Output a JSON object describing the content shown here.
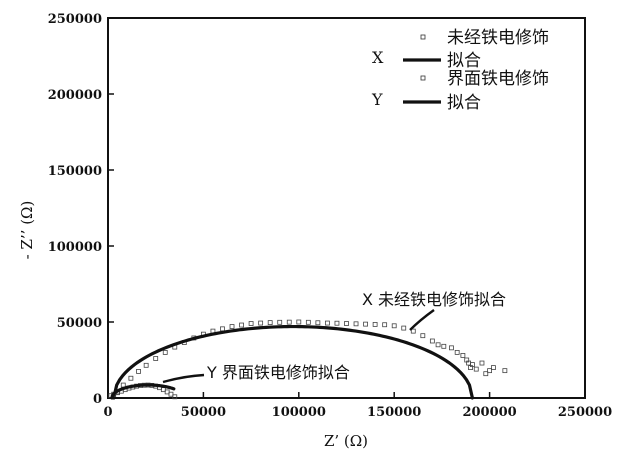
{
  "chart_data": {
    "type": "scatter",
    "xlabel": "Z’ (Ω)",
    "ylabel": "- Z’’ (Ω)",
    "xlim": [
      0,
      250000
    ],
    "ylim": [
      0,
      250000
    ],
    "x_ticks": [
      "0",
      "50000",
      "100000",
      "150000",
      "200000",
      "250000"
    ],
    "x_tick_values": [
      0,
      50000,
      100000,
      150000,
      200000,
      250000
    ],
    "y_ticks": [
      "0",
      "50000",
      "100000",
      "150000",
      "200000",
      "250000"
    ],
    "y_tick_values": [
      0,
      50000,
      100000,
      150000,
      200000,
      250000
    ],
    "grid": false,
    "legend_position": "top-right",
    "legend": {
      "group_x_label": "X",
      "group_y_label": "Y",
      "x_data": "未经铁电修饰",
      "x_fit": "拟合",
      "y_data": "界面铁电修饰",
      "y_fit": "拟合"
    },
    "annotations": [
      {
        "text": "X 未经铁电修饰拟合",
        "x": 125000,
        "y": 62000
      },
      {
        "text": "Y 界面铁电修饰拟合",
        "x": 60000,
        "y": 14500
      }
    ],
    "series": [
      {
        "name": "未经铁电修饰",
        "kind": "data",
        "x": [
          5000,
          8000,
          12000,
          16000,
          20000,
          25000,
          30000,
          35000,
          40000,
          45000,
          50000,
          55000,
          60000,
          65000,
          70000,
          75000,
          80000,
          85000,
          90000,
          95000,
          100000,
          105000,
          110000,
          115000,
          120000,
          125000,
          130000,
          135000,
          140000,
          145000,
          150000,
          155000,
          160000,
          165000,
          170000,
          173000,
          176000,
          180000,
          183000,
          186000,
          188000,
          189000,
          190000,
          191000,
          193000,
          196000,
          198000,
          200000,
          202000,
          208000
        ],
        "y": [
          4000,
          8500,
          13000,
          17500,
          21500,
          26000,
          30000,
          33500,
          36500,
          39500,
          42000,
          44000,
          45500,
          47000,
          48000,
          49000,
          49300,
          49600,
          49800,
          49900,
          50000,
          49800,
          49500,
          49300,
          49200,
          49000,
          48800,
          48600,
          48400,
          48200,
          47500,
          46000,
          44000,
          41000,
          37500,
          35000,
          34000,
          33000,
          30000,
          28000,
          25000,
          23000,
          20000,
          22000,
          19000,
          23000,
          16000,
          18000,
          20000,
          18000
        ]
      },
      {
        "name": "拟合",
        "kind": "fit",
        "center": 97000,
        "radius": 94000,
        "y_scale": 0.5,
        "x_start": 3000,
        "x_end": 191000
      },
      {
        "name": "界面铁电修饰",
        "kind": "data",
        "x": [
          1500,
          3000,
          5000,
          7000,
          9000,
          11000,
          13000,
          15000,
          17000,
          19000,
          21000,
          23000,
          25000,
          27000,
          29000,
          31000,
          33000,
          35000
        ],
        "y": [
          1500,
          2500,
          3500,
          4500,
          5500,
          6500,
          7200,
          7800,
          8200,
          8400,
          8500,
          8300,
          7800,
          6800,
          5500,
          4000,
          2500,
          800
        ]
      },
      {
        "name": "拟合",
        "kind": "fit",
        "center": 21000,
        "radius": 19000,
        "y_scale": 0.45,
        "x_start": 2000,
        "x_end": 34500
      }
    ]
  }
}
